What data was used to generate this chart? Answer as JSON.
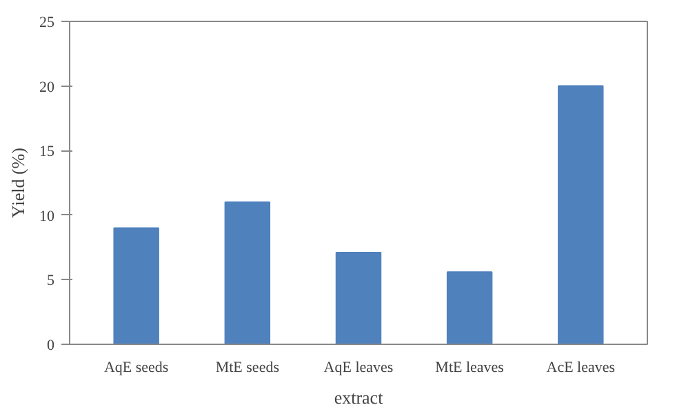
{
  "chart_data": {
    "type": "bar",
    "xlabel": "extract",
    "ylabel": "Yield (%)",
    "categories": [
      "AqE seeds",
      "MtE seeds",
      "AqE leaves",
      "MtE leaves",
      "AcE leaves"
    ],
    "values": [
      9,
      11,
      7.1,
      5.6,
      20
    ],
    "color": "#4f81bd",
    "ylim": [
      0,
      25
    ],
    "yticks": [
      0,
      5,
      10,
      15,
      20,
      25
    ],
    "grid": false
  }
}
